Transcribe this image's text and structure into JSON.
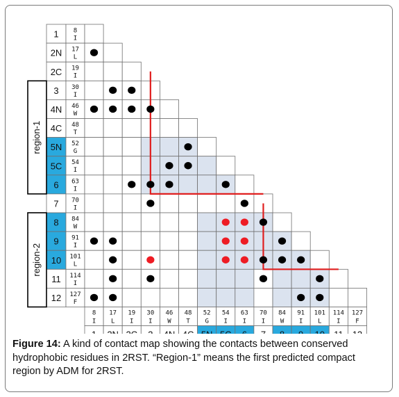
{
  "figure": {
    "caption_label": "Figure 14:",
    "caption_text": " A kind of contact map showing the contacts between conserved hydrophobic residues in 2RST. “Region-1” means the first predicted compact region by ADM for 2RST."
  },
  "contact_map": {
    "residues": [
      {
        "num": "8",
        "aa": "I",
        "pos": "1"
      },
      {
        "num": "17",
        "aa": "L",
        "pos": "2N"
      },
      {
        "num": "19",
        "aa": "I",
        "pos": "2C"
      },
      {
        "num": "30",
        "aa": "I",
        "pos": "3"
      },
      {
        "num": "46",
        "aa": "W",
        "pos": "4N"
      },
      {
        "num": "48",
        "aa": "T",
        "pos": "4C"
      },
      {
        "num": "52",
        "aa": "G",
        "pos": "5N"
      },
      {
        "num": "54",
        "aa": "I",
        "pos": "5C"
      },
      {
        "num": "63",
        "aa": "I",
        "pos": "6"
      },
      {
        "num": "70",
        "aa": "I",
        "pos": "7"
      },
      {
        "num": "84",
        "aa": "W",
        "pos": "8"
      },
      {
        "num": "91",
        "aa": "I",
        "pos": "9"
      },
      {
        "num": "101",
        "aa": "L",
        "pos": "10"
      },
      {
        "num": "114",
        "aa": "I",
        "pos": "11"
      },
      {
        "num": "127",
        "aa": "F",
        "pos": "12"
      }
    ],
    "regions": [
      {
        "label": "region-1",
        "members": [
          "5N",
          "5C",
          "6"
        ]
      },
      {
        "label": "region-2",
        "members": [
          "8",
          "9",
          "10"
        ]
      }
    ],
    "contacts": [
      {
        "row": "2N",
        "col": "1",
        "color": "black"
      },
      {
        "row": "3",
        "col": "2N",
        "color": "black"
      },
      {
        "row": "3",
        "col": "2C",
        "color": "black"
      },
      {
        "row": "4N",
        "col": "1",
        "color": "black"
      },
      {
        "row": "4N",
        "col": "2N",
        "color": "black"
      },
      {
        "row": "4N",
        "col": "2C",
        "color": "black"
      },
      {
        "row": "4N",
        "col": "3",
        "color": "black"
      },
      {
        "row": "5N",
        "col": "4C",
        "color": "black"
      },
      {
        "row": "5C",
        "col": "4N",
        "color": "black"
      },
      {
        "row": "5C",
        "col": "4C",
        "color": "black"
      },
      {
        "row": "6",
        "col": "2C",
        "color": "black"
      },
      {
        "row": "6",
        "col": "3",
        "color": "black"
      },
      {
        "row": "6",
        "col": "4N",
        "color": "black"
      },
      {
        "row": "6",
        "col": "5C",
        "color": "black"
      },
      {
        "row": "7",
        "col": "3",
        "color": "black"
      },
      {
        "row": "7",
        "col": "6",
        "color": "black"
      },
      {
        "row": "8",
        "col": "5C",
        "color": "red"
      },
      {
        "row": "8",
        "col": "6",
        "color": "red"
      },
      {
        "row": "8",
        "col": "7",
        "color": "black"
      },
      {
        "row": "9",
        "col": "1",
        "color": "black"
      },
      {
        "row": "9",
        "col": "2N",
        "color": "black"
      },
      {
        "row": "9",
        "col": "5C",
        "color": "red"
      },
      {
        "row": "9",
        "col": "6",
        "color": "red"
      },
      {
        "row": "9",
        "col": "8",
        "color": "black"
      },
      {
        "row": "10",
        "col": "2N",
        "color": "black"
      },
      {
        "row": "10",
        "col": "3",
        "color": "red"
      },
      {
        "row": "10",
        "col": "5C",
        "color": "red"
      },
      {
        "row": "10",
        "col": "6",
        "color": "red"
      },
      {
        "row": "10",
        "col": "7",
        "color": "black"
      },
      {
        "row": "10",
        "col": "8",
        "color": "black"
      },
      {
        "row": "10",
        "col": "9",
        "color": "black"
      },
      {
        "row": "11",
        "col": "2N",
        "color": "black"
      },
      {
        "row": "11",
        "col": "3",
        "color": "black"
      },
      {
        "row": "11",
        "col": "7",
        "color": "black"
      },
      {
        "row": "11",
        "col": "10",
        "color": "black"
      },
      {
        "row": "12",
        "col": "1",
        "color": "black"
      },
      {
        "row": "12",
        "col": "2N",
        "color": "black"
      },
      {
        "row": "12",
        "col": "9",
        "color": "black"
      },
      {
        "row": "12",
        "col": "10",
        "color": "black"
      }
    ],
    "colors": {
      "region_fill": "#29a9de",
      "shade_fill": "#dbe3ef",
      "grid_line": "#707070",
      "outline": "#000000",
      "boundary": "#e01f1f",
      "contact_black": "#000000",
      "contact_red": "#ee1c24"
    }
  }
}
